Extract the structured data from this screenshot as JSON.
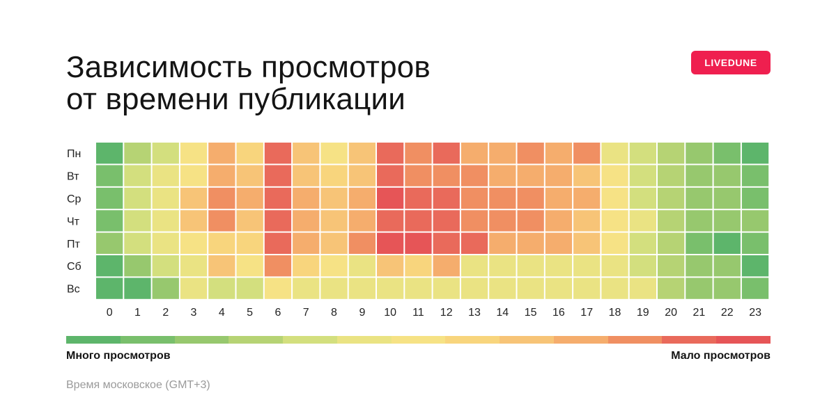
{
  "title": {
    "line1": "Зависимость просмотров",
    "line2": "от времени публикации"
  },
  "brand": "LIVEDUNE",
  "legend": {
    "low_label": "Много просмотров",
    "high_label": "Мало просмотров"
  },
  "footnote": "Время московское (GMT+3)",
  "colors": {
    "scale": [
      "#5db56b",
      "#79bf6c",
      "#97c86e",
      "#b6d374",
      "#d3df7e",
      "#eae383",
      "#f6e285",
      "#f8d57d",
      "#f7c477",
      "#f5ad6d",
      "#f08f62",
      "#e96a5b",
      "#e65557"
    ],
    "brand": "#ef1f4f"
  },
  "chart_data": {
    "type": "heatmap",
    "x": [
      "0",
      "1",
      "2",
      "3",
      "4",
      "5",
      "6",
      "7",
      "8",
      "9",
      "10",
      "11",
      "12",
      "13",
      "14",
      "15",
      "16",
      "17",
      "18",
      "19",
      "20",
      "21",
      "22",
      "23"
    ],
    "y": [
      "Пн",
      "Вт",
      "Ср",
      "Чт",
      "Пт",
      "Сб",
      "Вс"
    ],
    "value_scale": "0 = много просмотров, 12 = мало просмотров",
    "values": [
      [
        0,
        3,
        4,
        6,
        9,
        7,
        11,
        8,
        6,
        8,
        11,
        10,
        11,
        9,
        9,
        10,
        9,
        10,
        5,
        4,
        3,
        2,
        1,
        0
      ],
      [
        1,
        4,
        5,
        6,
        9,
        8,
        11,
        8,
        7,
        8,
        11,
        10,
        10,
        10,
        9,
        9,
        9,
        8,
        6,
        4,
        3,
        2,
        2,
        1
      ],
      [
        1,
        4,
        5,
        8,
        10,
        9,
        11,
        9,
        8,
        9,
        12,
        11,
        11,
        10,
        10,
        10,
        9,
        9,
        6,
        4,
        3,
        2,
        2,
        1
      ],
      [
        1,
        4,
        5,
        8,
        10,
        8,
        11,
        9,
        8,
        9,
        11,
        11,
        11,
        10,
        10,
        10,
        9,
        8,
        6,
        5,
        3,
        2,
        2,
        2
      ],
      [
        2,
        4,
        5,
        6,
        7,
        7,
        11,
        9,
        8,
        10,
        12,
        12,
        11,
        11,
        9,
        9,
        9,
        8,
        6,
        4,
        3,
        1,
        0,
        1
      ],
      [
        0,
        2,
        4,
        5,
        8,
        6,
        10,
        7,
        6,
        5,
        8,
        7,
        9,
        5,
        5,
        5,
        5,
        5,
        5,
        4,
        3,
        2,
        2,
        0
      ],
      [
        0,
        0,
        2,
        5,
        4,
        4,
        6,
        5,
        5,
        5,
        5,
        5,
        5,
        5,
        5,
        5,
        5,
        5,
        5,
        5,
        3,
        2,
        2,
        1
      ]
    ]
  }
}
